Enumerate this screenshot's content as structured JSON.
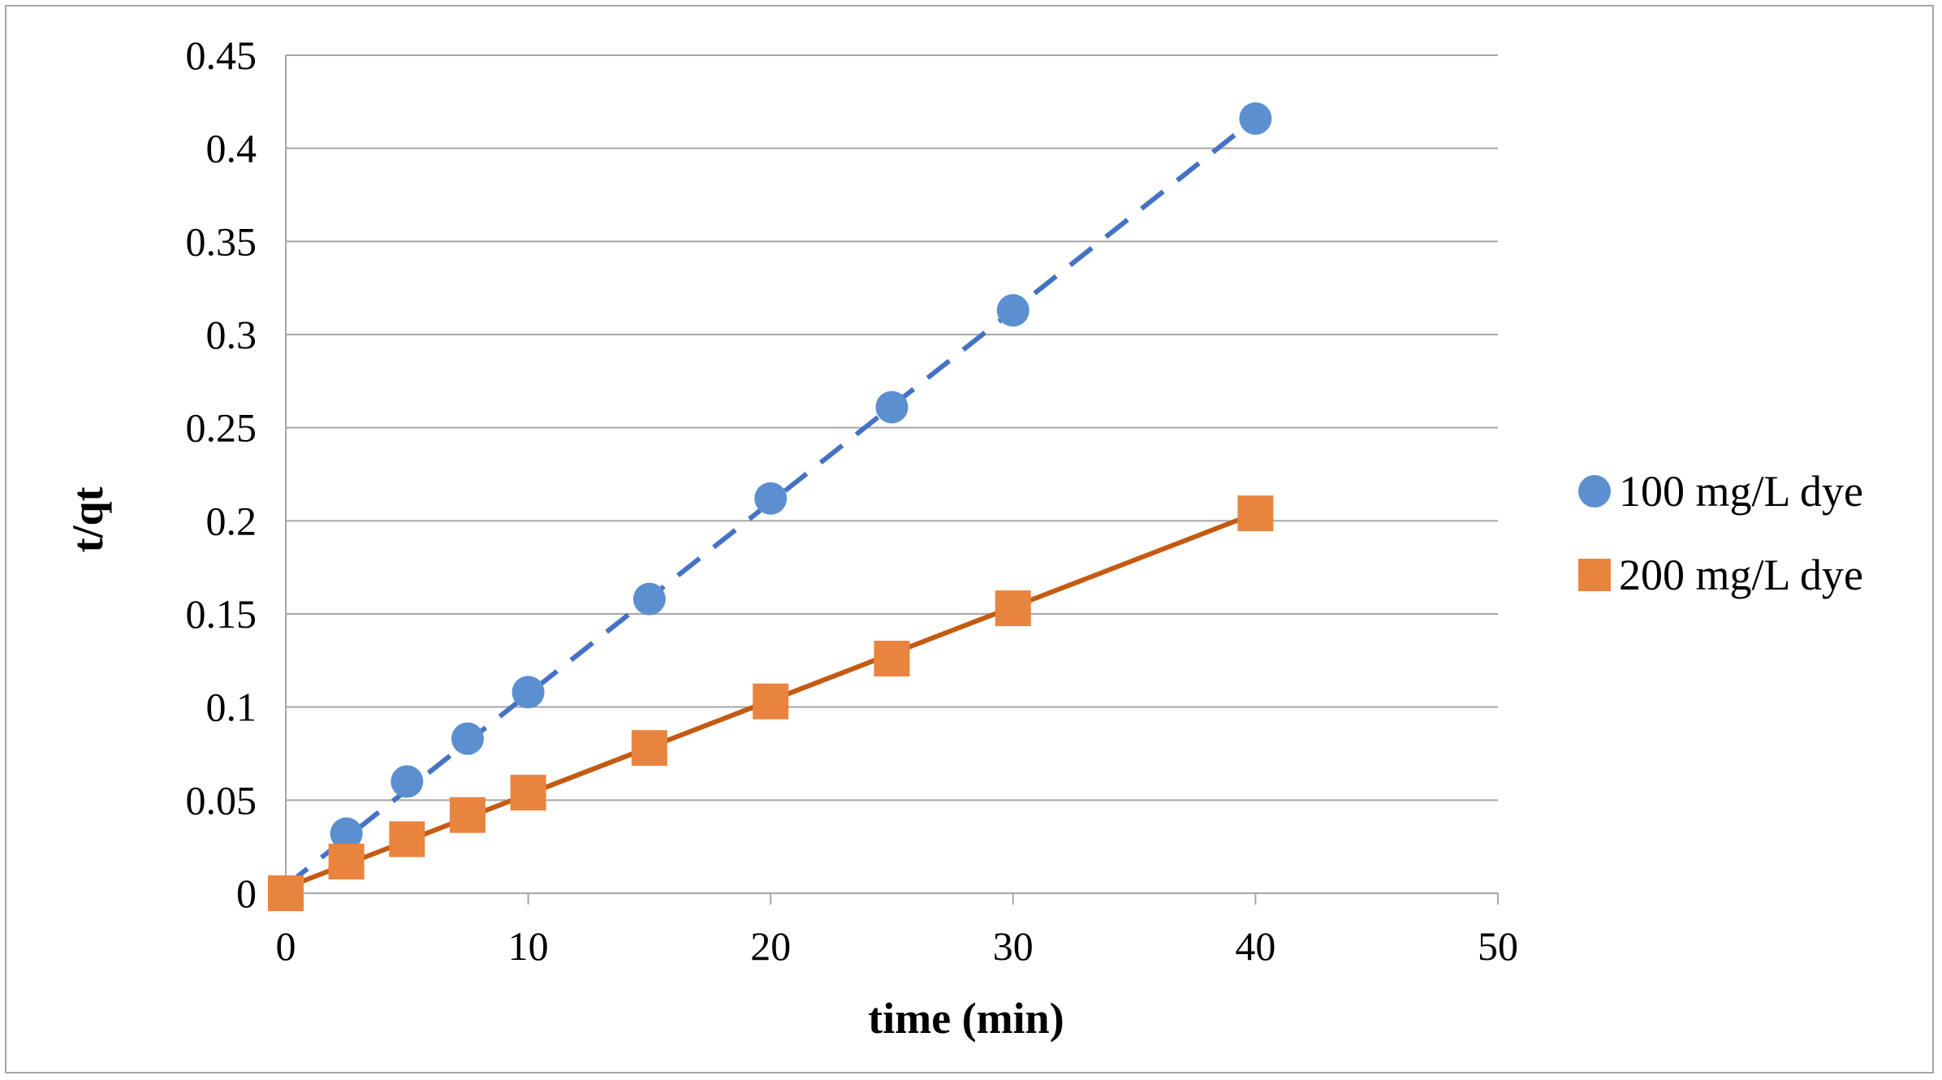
{
  "chart_data": {
    "type": "scatter",
    "title": "",
    "xlabel": "time (min)",
    "ylabel": "t/qt",
    "xlim": [
      0,
      50
    ],
    "ylim": [
      0,
      0.45
    ],
    "x_ticks": [
      "0",
      "10",
      "20",
      "30",
      "40",
      "50"
    ],
    "y_ticks": [
      "0",
      "0.05",
      "0.1",
      "0.15",
      "0.2",
      "0.25",
      "0.3",
      "0.35",
      "0.4",
      "0.45"
    ],
    "grid": true,
    "legend_position": "right",
    "series": [
      {
        "name": "100 mg/L dye",
        "marker": "circle",
        "color": "#5b8fd0",
        "line_color": "#4472c4",
        "trendline": "dashed",
        "x": [
          2.5,
          5,
          7.5,
          10,
          15,
          20,
          25,
          30,
          40
        ],
        "y": [
          0.032,
          0.06,
          0.083,
          0.108,
          0.158,
          0.212,
          0.261,
          0.313,
          0.416
        ],
        "trend_start": [
          0,
          0.004
        ],
        "trend_end": [
          40,
          0.416
        ]
      },
      {
        "name": "200 mg/L dye",
        "marker": "square",
        "color": "#e9843f",
        "line_color": "#c55a11",
        "trendline": "solid",
        "x": [
          0,
          2.5,
          5,
          7.5,
          10,
          15,
          20,
          25,
          30,
          40
        ],
        "y": [
          0,
          0.017,
          0.029,
          0.042,
          0.054,
          0.078,
          0.103,
          0.126,
          0.153,
          0.204
        ],
        "trend_start": [
          0,
          0.003
        ],
        "trend_end": [
          40,
          0.204
        ]
      }
    ]
  }
}
